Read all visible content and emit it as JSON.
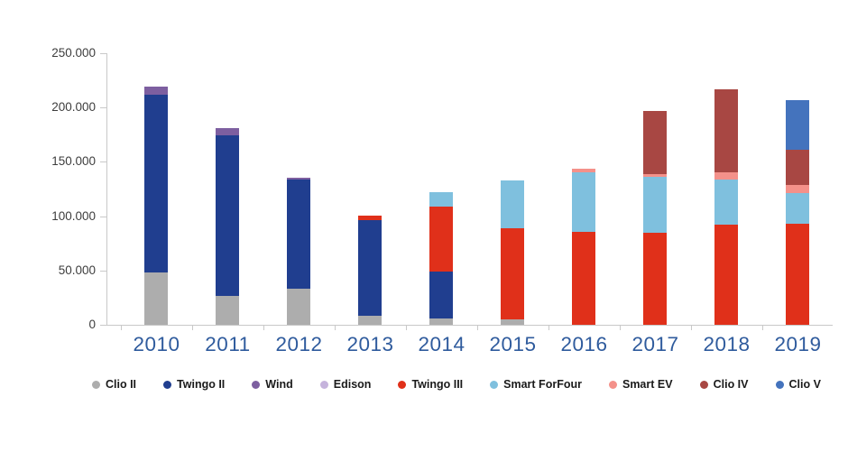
{
  "chart_data": {
    "type": "bar",
    "subtype": "stacked-column",
    "title": "",
    "categories": [
      "2010",
      "2011",
      "2012",
      "2013",
      "2014",
      "2015",
      "2016",
      "2017",
      "2018",
      "2019"
    ],
    "series": [
      {
        "name": "Clio II",
        "color": "#adadad",
        "values": [
          48000,
          27000,
          33000,
          8500,
          6000,
          5000,
          0,
          0,
          0,
          0
        ]
      },
      {
        "name": "Twingo II",
        "color": "#203e8f",
        "values": [
          164000,
          147500,
          101000,
          88000,
          43000,
          0,
          0,
          0,
          0,
          0
        ]
      },
      {
        "name": "Wind",
        "color": "#7d5fa0",
        "values": [
          7000,
          7000,
          1500,
          0,
          0,
          0,
          0,
          0,
          0,
          0
        ]
      },
      {
        "name": "Edison",
        "color": "#c5b3dc",
        "values": [
          0,
          0,
          0,
          0,
          0,
          0,
          0,
          0,
          0,
          0
        ]
      },
      {
        "name": "Twingo III",
        "color": "#e0301a",
        "values": [
          0,
          0,
          0,
          4000,
          60000,
          84000,
          86000,
          85000,
          92500,
          93000
        ]
      },
      {
        "name": "Smart ForFour",
        "color": "#7fc0de",
        "values": [
          0,
          0,
          0,
          0,
          13500,
          44000,
          55000,
          51000,
          41500,
          28000
        ]
      },
      {
        "name": "Smart EV",
        "color": "#f4918a",
        "values": [
          0,
          0,
          0,
          0,
          0,
          0,
          3000,
          2500,
          6500,
          7500
        ]
      },
      {
        "name": "Clio IV",
        "color": "#a84743",
        "values": [
          0,
          0,
          0,
          0,
          0,
          0,
          0,
          58000,
          76000,
          32500
        ]
      },
      {
        "name": "Clio V",
        "color": "#4473bd",
        "values": [
          0,
          0,
          0,
          0,
          0,
          0,
          0,
          0,
          0,
          46000
        ]
      }
    ],
    "y_axis": {
      "tick_labels": [
        "250.000",
        "200.000",
        "150.000",
        "100.000",
        "50.000",
        "0"
      ],
      "tick_values": [
        250000,
        200000,
        150000,
        100000,
        50000,
        0
      ],
      "min": 0,
      "max": 250000
    },
    "grid": false,
    "legend_position": "bottom"
  },
  "colors": {
    "background": "#ffffff",
    "axis": "#c9c9c9",
    "year_label": "#2f5b9d",
    "y_tick_label": "#3d3d3d",
    "legend_text": "#1a1a1a"
  }
}
